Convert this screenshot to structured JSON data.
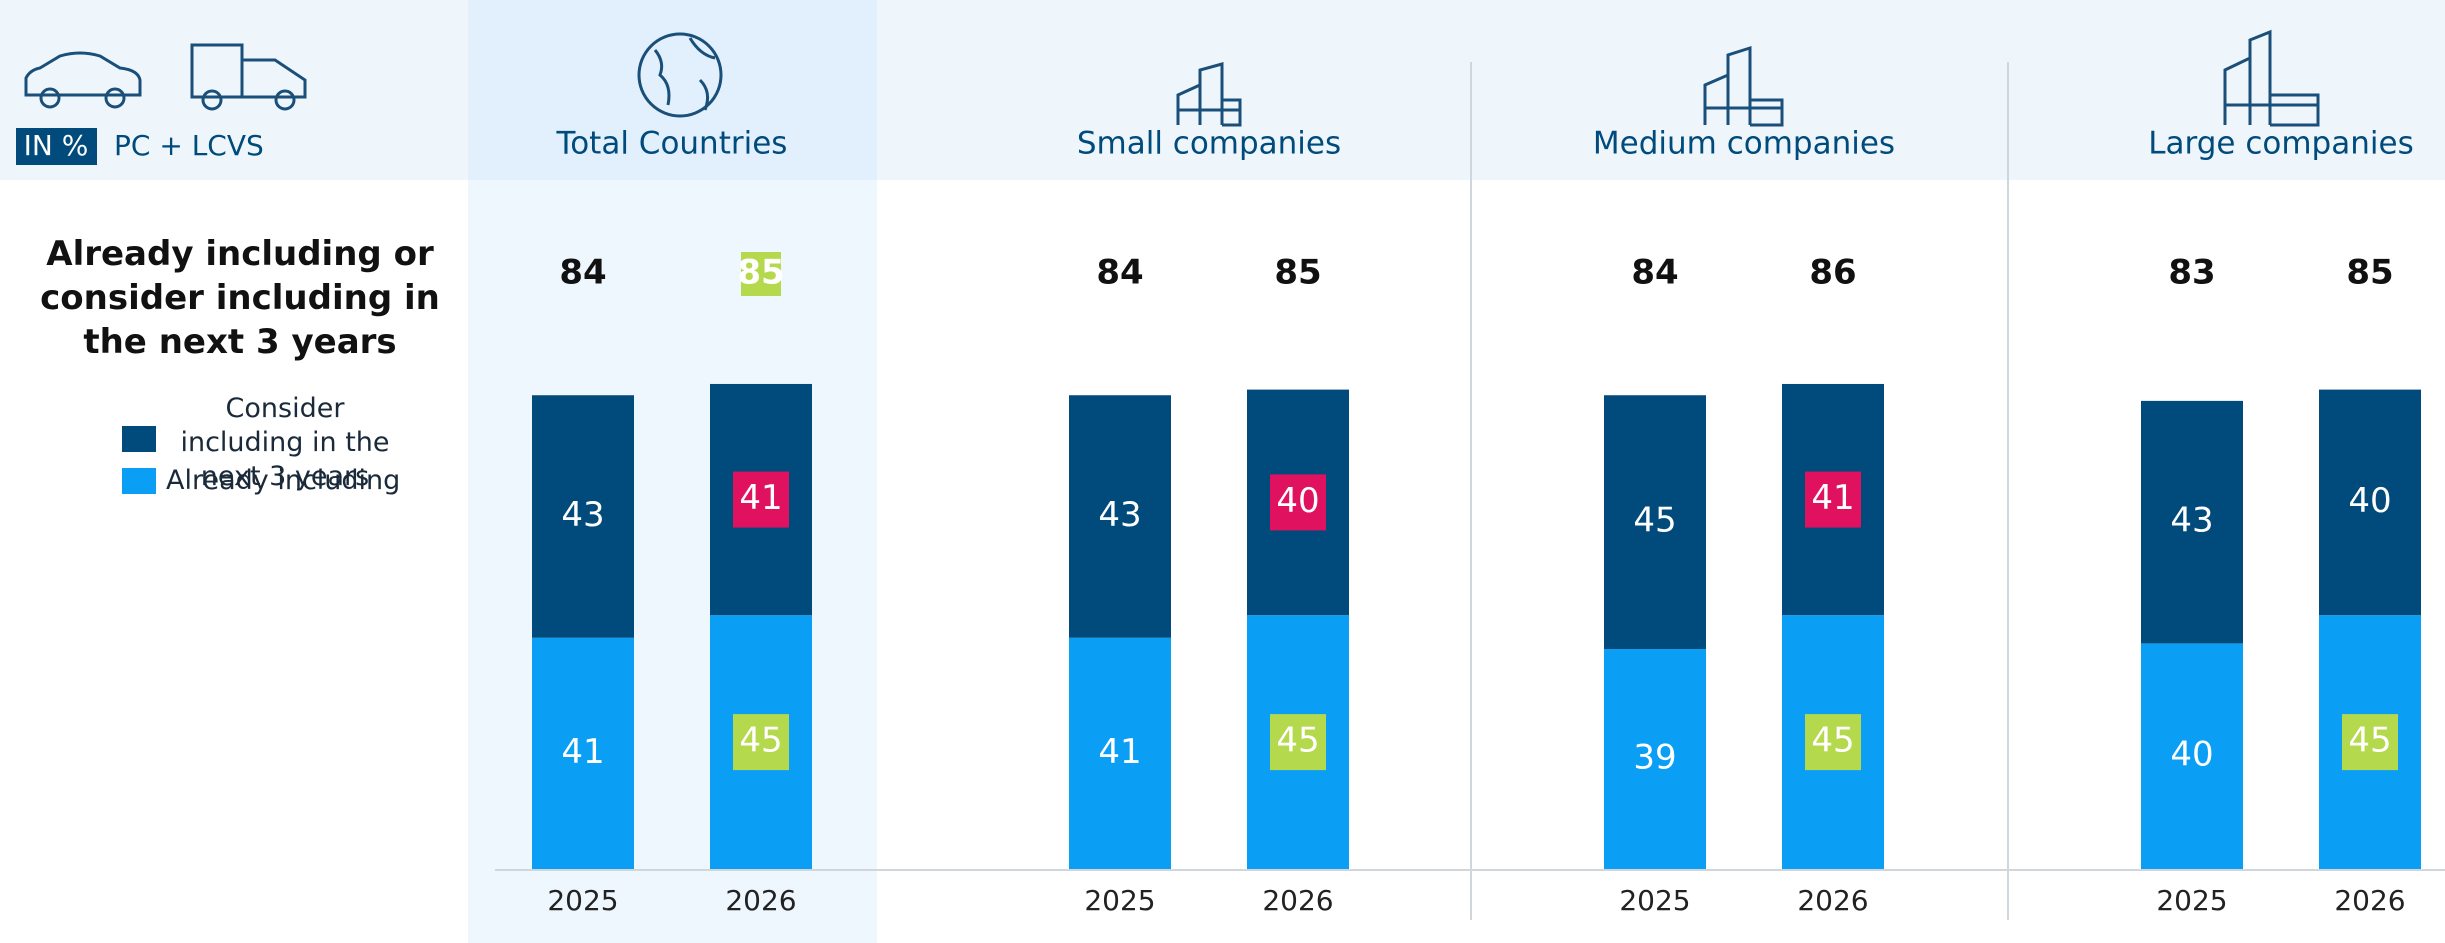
{
  "chart_data": {
    "type": "bar",
    "stacked": true,
    "unit_label": "IN %",
    "vehicle_label": "PC + LCVS",
    "subtitle": "Already including or consider including in the next 3 years",
    "groups": [
      "Total Countries",
      "Small companies",
      "Medium companies",
      "Large companies"
    ],
    "categories": [
      [
        "2025",
        "2026"
      ],
      [
        "2025",
        "2026"
      ],
      [
        "2025",
        "2026"
      ],
      [
        "2025",
        "2026"
      ]
    ],
    "series": [
      {
        "name": "Already including",
        "color": "#0a9ff5",
        "highlight_color": "#b5d94c",
        "values": [
          [
            41,
            45
          ],
          [
            41,
            45
          ],
          [
            39,
            45
          ],
          [
            40,
            45
          ]
        ],
        "highlighted": [
          [
            false,
            true
          ],
          [
            false,
            true
          ],
          [
            false,
            true
          ],
          [
            false,
            true
          ]
        ]
      },
      {
        "name": "Consider including in the next 3 years",
        "color": "#004b7c",
        "highlight_color": "#e0115f",
        "values": [
          [
            43,
            41
          ],
          [
            43,
            40
          ],
          [
            45,
            41
          ],
          [
            43,
            40
          ]
        ],
        "highlighted": [
          [
            false,
            true
          ],
          [
            false,
            true
          ],
          [
            false,
            true
          ],
          [
            false,
            false
          ]
        ]
      }
    ],
    "totals": [
      [
        84,
        85
      ],
      [
        84,
        85
      ],
      [
        84,
        86
      ],
      [
        83,
        85
      ]
    ],
    "totals_highlight_color": "#b5d94c",
    "totals_highlighted": [
      [
        false,
        true
      ],
      [
        false,
        false
      ],
      [
        false,
        false
      ],
      [
        false,
        false
      ]
    ]
  }
}
